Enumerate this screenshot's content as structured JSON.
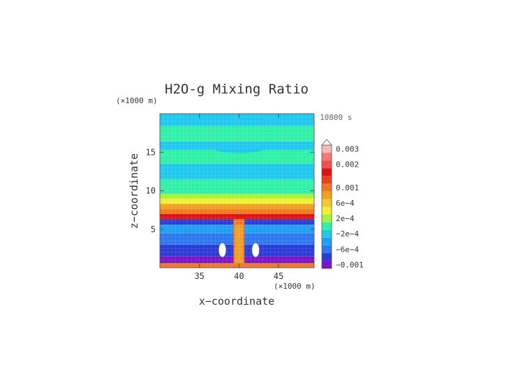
{
  "chart_data": {
    "type": "heatmap",
    "title": "H2O-g Mixing Ratio",
    "time_label": "10800 s",
    "xlabel": "x−coordinate",
    "ylabel": "z−coordinate",
    "x_units": "(×1000 m)",
    "y_units": "(×1000 m)",
    "xlim": [
      30,
      49.5
    ],
    "ylim": [
      0,
      20
    ],
    "x_ticks": [
      {
        "value": 35,
        "label": "35"
      },
      {
        "value": 40,
        "label": "40"
      },
      {
        "value": 45,
        "label": "45"
      }
    ],
    "y_ticks": [
      {
        "value": 5,
        "label": "5"
      },
      {
        "value": 10,
        "label": "10"
      },
      {
        "value": 15,
        "label": "15"
      }
    ],
    "colorbar": {
      "levels": [
        {
          "color": "#7b16c8",
          "label": "−0.001"
        },
        {
          "color": "#2b3cd6",
          "label": ""
        },
        {
          "color": "#2d78f0",
          "label": "−6e−4"
        },
        {
          "color": "#1e9ff0",
          "label": ""
        },
        {
          "color": "#20c8f0",
          "label": "−2e−4"
        },
        {
          "color": "#30f0a8",
          "label": ""
        },
        {
          "color": "#a8f03c",
          "label": "2e−4"
        },
        {
          "color": "#f0f030",
          "label": ""
        },
        {
          "color": "#f0c830",
          "label": "6e−4"
        },
        {
          "color": "#f0a020",
          "label": ""
        },
        {
          "color": "#f07820",
          "label": "0.001"
        },
        {
          "color": "#e84020",
          "label": ""
        },
        {
          "color": "#e01010",
          "label": ""
        },
        {
          "color": "#f05050",
          "label": "0.002"
        },
        {
          "color": "#f87878",
          "label": ""
        },
        {
          "color": "#f8b8b8",
          "label": "0.003"
        }
      ]
    },
    "bands": [
      {
        "z0": 0.0,
        "z1": 0.6,
        "color": "#f07820"
      },
      {
        "z0": 0.6,
        "z1": 1.5,
        "color": "#7b16c8"
      },
      {
        "z0": 1.5,
        "z1": 3.0,
        "color": "#2b3cd6"
      },
      {
        "z0": 3.0,
        "z1": 4.5,
        "color": "#2d78f0"
      },
      {
        "z0": 4.5,
        "z1": 5.6,
        "color": "#1e9ff0"
      },
      {
        "z0": 5.6,
        "z1": 6.3,
        "color": "#2b3cd6"
      },
      {
        "z0": 6.3,
        "z1": 7.0,
        "color": "#e01010"
      },
      {
        "z0": 7.0,
        "z1": 7.6,
        "color": "#f07820"
      },
      {
        "z0": 7.6,
        "z1": 8.3,
        "color": "#f0a020"
      },
      {
        "z0": 8.3,
        "z1": 9.0,
        "color": "#f0f030"
      },
      {
        "z0": 9.0,
        "z1": 9.6,
        "color": "#a8f03c"
      },
      {
        "z0": 9.6,
        "z1": 11.5,
        "color": "#30f0a8"
      },
      {
        "z0": 11.5,
        "z1": 13.5,
        "color": "#20c8f0"
      },
      {
        "z0": 13.5,
        "z1": 15.3,
        "color": "#30f0a8"
      },
      {
        "z0": 15.3,
        "z1": 16.4,
        "color": "#20c8f0"
      },
      {
        "z0": 16.4,
        "z1": 18.4,
        "color": "#30f0a8"
      },
      {
        "z0": 18.4,
        "z1": 20.0,
        "color": "#20c8f0"
      }
    ],
    "features": [
      {
        "kind": "column",
        "x0": 39.3,
        "x1": 40.7,
        "z0": 0.0,
        "z1": 6.3,
        "color": "#f07820"
      },
      {
        "kind": "column",
        "x0": 39.5,
        "x1": 40.5,
        "z0": 0.6,
        "z1": 5.6,
        "color": "#f0a020"
      },
      {
        "kind": "blob",
        "x": 37.9,
        "z": 2.3,
        "rx": 0.45,
        "rz": 0.9,
        "color": "#ffffff"
      },
      {
        "kind": "blob",
        "x": 42.1,
        "z": 2.3,
        "rx": 0.45,
        "rz": 0.9,
        "color": "#ffffff"
      },
      {
        "kind": "blob",
        "x": 40.0,
        "z": 15.4,
        "rx": 3.0,
        "rz": 0.5,
        "color": "#20c8f0"
      }
    ]
  }
}
